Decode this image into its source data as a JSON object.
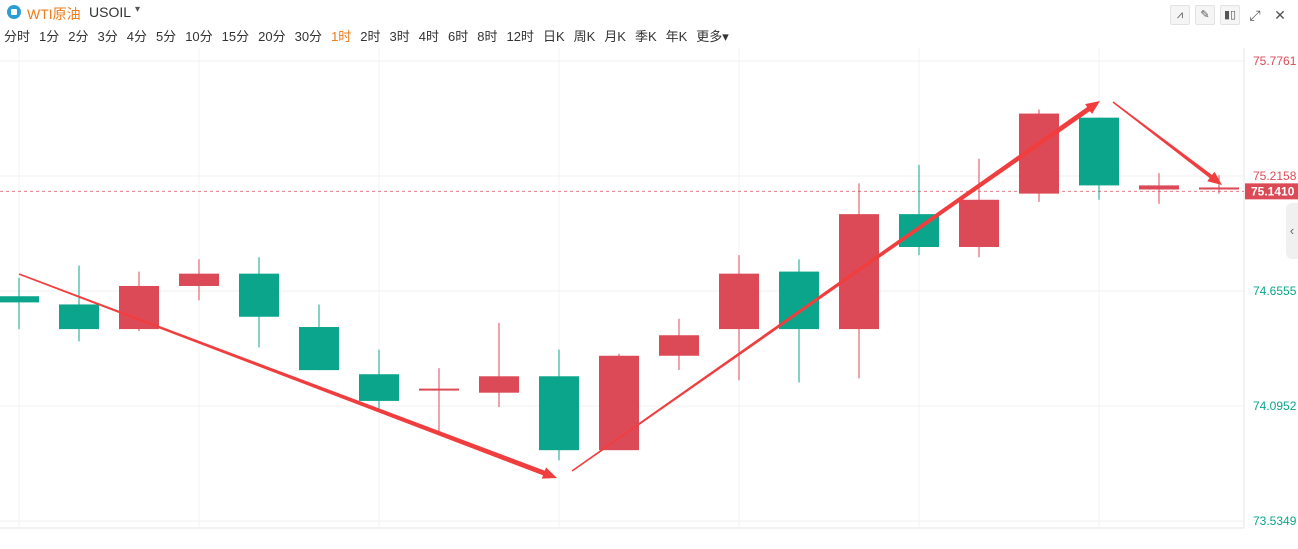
{
  "header": {
    "symbol_name": "WTI原油",
    "symbol_code": "USOIL",
    "caret": "▾",
    "tools": [
      {
        "name": "indicator-icon",
        "glyph": "⩘"
      },
      {
        "name": "draw-icon",
        "glyph": "✎"
      },
      {
        "name": "candle-type-icon",
        "glyph": "▮▯"
      },
      {
        "name": "expand-icon",
        "glyph": "⤢"
      },
      {
        "name": "close-icon",
        "glyph": "✕"
      }
    ]
  },
  "timeframes": [
    "分时",
    "1分",
    "2分",
    "3分",
    "4分",
    "5分",
    "10分",
    "15分",
    "20分",
    "30分",
    "1时",
    "2时",
    "3时",
    "4时",
    "6时",
    "8时",
    "12时",
    "日K",
    "周K",
    "月K",
    "季K",
    "年K",
    "更多▾"
  ],
  "active_timeframe": "1时",
  "colors": {
    "up": "#dc4a57",
    "down": "#0aa58b",
    "arrow": "#f03e3e",
    "active": "#f07a18"
  },
  "chart_data": {
    "type": "candlestick",
    "y_ticks": [
      "75.7761",
      "75.2158",
      "74.6555",
      "74.0952",
      "73.5349"
    ],
    "current_price": "75.1410",
    "ylim": [
      73.5349,
      75.7761
    ],
    "candles": [
      {
        "o": 74.63,
        "c": 74.6,
        "h": 74.72,
        "l": 74.47
      },
      {
        "o": 74.59,
        "c": 74.47,
        "h": 74.78,
        "l": 74.41
      },
      {
        "o": 74.47,
        "c": 74.68,
        "h": 74.75,
        "l": 74.46
      },
      {
        "o": 74.68,
        "c": 74.74,
        "h": 74.81,
        "l": 74.61
      },
      {
        "o": 74.74,
        "c": 74.53,
        "h": 74.82,
        "l": 74.38
      },
      {
        "o": 74.48,
        "c": 74.27,
        "h": 74.59,
        "l": 74.27
      },
      {
        "o": 74.25,
        "c": 74.12,
        "h": 74.37,
        "l": 74.07
      },
      {
        "o": 74.18,
        "c": 74.18,
        "h": 74.28,
        "l": 73.96
      },
      {
        "o": 74.16,
        "c": 74.24,
        "h": 74.5,
        "l": 74.09
      },
      {
        "o": 74.24,
        "c": 73.88,
        "h": 74.37,
        "l": 73.83
      },
      {
        "o": 73.88,
        "c": 74.34,
        "h": 74.35,
        "l": 73.88
      },
      {
        "o": 74.34,
        "c": 74.44,
        "h": 74.52,
        "l": 74.27
      },
      {
        "o": 74.47,
        "c": 74.74,
        "h": 74.83,
        "l": 74.22
      },
      {
        "o": 74.75,
        "c": 74.47,
        "h": 74.81,
        "l": 74.21
      },
      {
        "o": 74.47,
        "c": 75.03,
        "h": 75.18,
        "l": 74.23
      },
      {
        "o": 75.03,
        "c": 74.87,
        "h": 75.27,
        "l": 74.83
      },
      {
        "o": 74.87,
        "c": 75.1,
        "h": 75.3,
        "l": 74.82
      },
      {
        "o": 75.13,
        "c": 75.52,
        "h": 75.54,
        "l": 75.09
      },
      {
        "o": 75.5,
        "c": 75.17,
        "h": 75.5,
        "l": 75.1
      },
      {
        "o": 75.15,
        "c": 75.17,
        "h": 75.23,
        "l": 75.08
      },
      {
        "o": 75.15,
        "c": 75.16,
        "h": 75.22,
        "l": 75.13
      }
    ]
  }
}
